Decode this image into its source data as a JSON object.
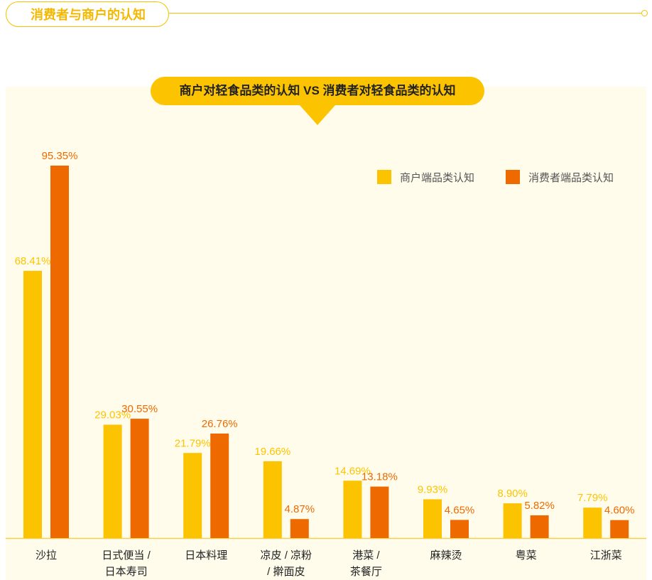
{
  "section": {
    "title": "消费者与商户的认知"
  },
  "chart_data": {
    "type": "bar",
    "title": "商户对轻食品类的认知 VS 消费者对轻食品类的认知",
    "categories": [
      [
        "沙拉"
      ],
      [
        "日式便当 /",
        "日本寿司"
      ],
      [
        "日本料理"
      ],
      [
        "凉皮 / 凉粉",
        "/ 擀面皮"
      ],
      [
        "港菜 /",
        "茶餐厅"
      ],
      [
        "麻辣烫"
      ],
      [
        "粤菜"
      ],
      [
        "江浙菜"
      ]
    ],
    "series": [
      {
        "name": "商户端品类认知",
        "color": "#fcc400",
        "values": [
          68.41,
          29.03,
          21.79,
          19.66,
          14.69,
          9.93,
          8.9,
          7.79
        ],
        "labels": [
          "68.41%",
          "29.03%",
          "21.79%",
          "19.66%",
          "14.69%",
          "9.93%",
          "8.90%",
          "7.79%"
        ]
      },
      {
        "name": "消费者端品类认知",
        "color": "#ee6a00",
        "values": [
          95.35,
          30.55,
          26.76,
          4.87,
          13.18,
          4.65,
          5.82,
          4.6
        ],
        "labels": [
          "95.35%",
          "30.55%",
          "26.76%",
          "4.87%",
          "13.18%",
          "4.65%",
          "5.82%",
          "4.60%"
        ]
      }
    ],
    "ylim": [
      0,
      100
    ],
    "grid": false,
    "legend": "top-right"
  }
}
